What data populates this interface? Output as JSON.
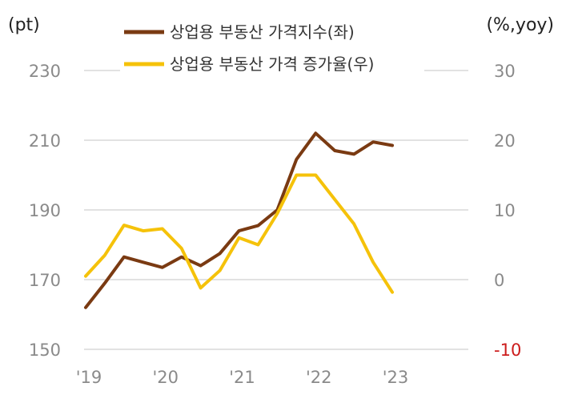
{
  "chart_data": {
    "type": "line",
    "left_unit": "(pt)",
    "right_unit": "(%,yoy)",
    "x_tick_labels": [
      "'19",
      "'20",
      "'21",
      "'22",
      "'23"
    ],
    "x": [
      "2019Q1",
      "2019Q2",
      "2019Q3",
      "2019Q4",
      "2020Q1",
      "2020Q2",
      "2020Q3",
      "2020Q4",
      "2021Q1",
      "2021Q2",
      "2021Q3",
      "2021Q4",
      "2022Q1",
      "2022Q2",
      "2022Q3",
      "2022Q4",
      "2023Q1"
    ],
    "left_axis": {
      "ylim": [
        150,
        230
      ],
      "ticks": [
        150,
        170,
        190,
        210,
        230
      ]
    },
    "right_axis": {
      "ylim": [
        -10,
        30
      ],
      "ticks": [
        -10,
        0,
        10,
        20,
        30
      ]
    },
    "grid": true,
    "legend_position": "top",
    "series": [
      {
        "name": "상업용 부동산 가격지수(좌)",
        "axis": "left",
        "color": "#7a3a12",
        "values": [
          162,
          169,
          176.5,
          175,
          173.5,
          176.5,
          174,
          177.5,
          184,
          185.5,
          190,
          204.5,
          212,
          207,
          206,
          209.5,
          208.5
        ]
      },
      {
        "name": "상업용 부동산 가격 증가율(우)",
        "axis": "right",
        "color": "#f5c20a",
        "values": [
          0.5,
          3.5,
          7.8,
          7,
          7.3,
          4.5,
          -1.2,
          1.3,
          6,
          5,
          9.5,
          15,
          15,
          11.5,
          8,
          2.5,
          -1.8
        ]
      }
    ]
  }
}
